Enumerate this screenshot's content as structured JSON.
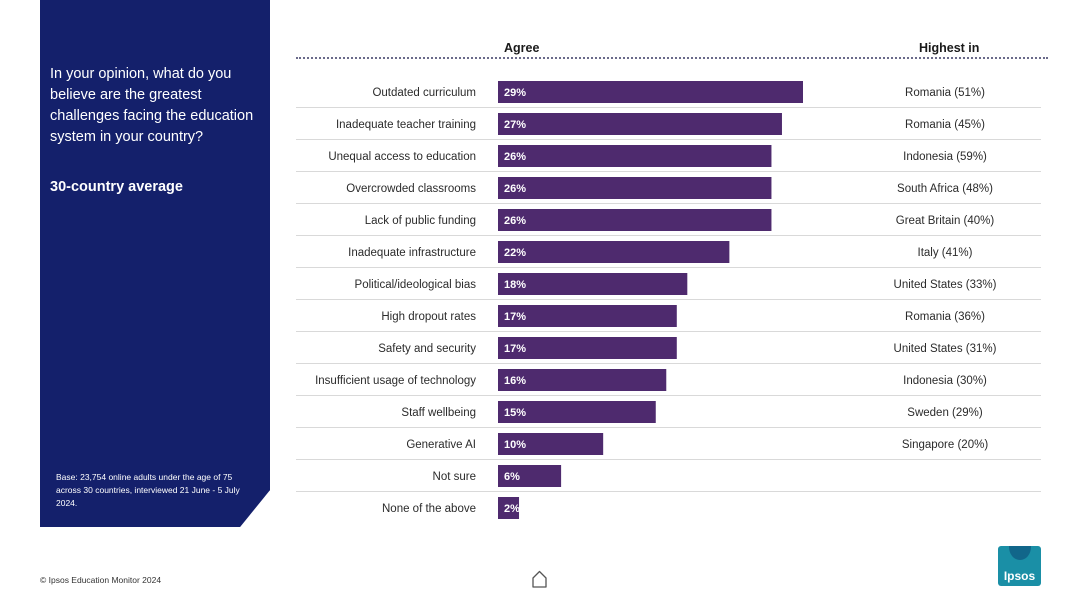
{
  "sidebar": {
    "question": "In your opinion, what do you believe are the greatest challenges facing the education system in your country?",
    "average_label": "30-country average",
    "base_note": "Base: 23,754 online adults under the age of 75 across 30 countries, interviewed 21 June - 5 July 2024."
  },
  "footer": {
    "copyright": "© Ipsos Education Monitor 2024",
    "logo_text": "Ipsos"
  },
  "chart_data": {
    "type": "bar",
    "orientation": "horizontal",
    "column_headers": {
      "agree": "Agree",
      "highest": "Highest in"
    },
    "categories": [
      "Outdated curriculum",
      "Inadequate teacher training",
      "Unequal access to education",
      "Overcrowded classrooms",
      "Lack of public funding",
      "Inadequate infrastructure",
      "Political/ideological bias",
      "High dropout rates",
      "Safety and security",
      "Insufficient usage of technology",
      "Staff wellbeing",
      "Generative AI",
      "Not sure",
      "None of the above"
    ],
    "values": [
      29,
      27,
      26,
      26,
      26,
      22,
      18,
      17,
      17,
      16,
      15,
      10,
      6,
      2
    ],
    "value_labels": [
      "29%",
      "27%",
      "26%",
      "26%",
      "26%",
      "22%",
      "18%",
      "17%",
      "17%",
      "16%",
      "15%",
      "10%",
      "6%",
      "2%"
    ],
    "highest_in": [
      "Romania (51%)",
      "Romania (45%)",
      "Indonesia (59%)",
      "South Africa (48%)",
      "Great Britain (40%)",
      "Italy (41%)",
      "United States (33%)",
      "Romania (36%)",
      "United States (31%)",
      "Indonesia (30%)",
      "Sweden (29%)",
      "Singapore (20%)",
      "",
      ""
    ],
    "xlim": [
      0,
      29
    ],
    "colors": {
      "bar": "#4e2a6e",
      "label": "#ffffff",
      "divider": "#d9d9d9"
    }
  }
}
